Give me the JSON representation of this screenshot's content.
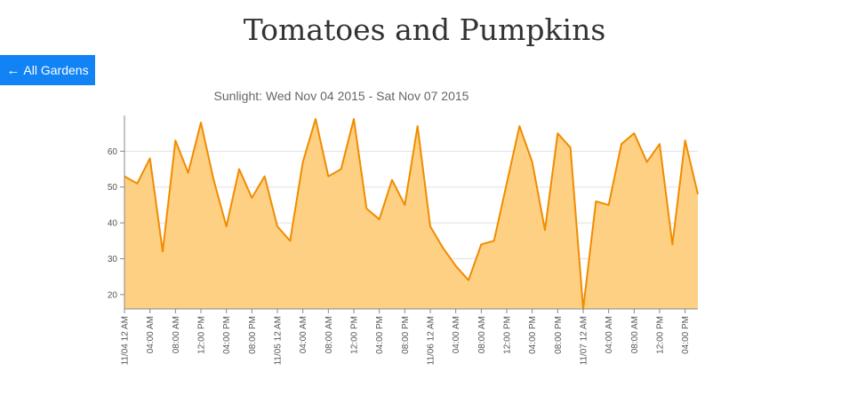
{
  "page": {
    "title": "Tomatoes and Pumpkins",
    "back_button_label": "All Gardens",
    "back_icon": "left-arrow-icon"
  },
  "colors": {
    "line": "#f08c00",
    "fill": "#fed083",
    "button": "#1283f4",
    "grid": "#e0e0e0"
  },
  "chart_data": {
    "type": "area",
    "title": "Sunlight: Wed Nov 04 2015 - Sat Nov 07 2015",
    "xlabel": "",
    "ylabel": "",
    "ylim": [
      16,
      70
    ],
    "yticks": [
      20,
      30,
      40,
      50,
      60
    ],
    "grid": "horizontal",
    "x_tick_labels": [
      "11/04 12 AM",
      "04:00 AM",
      "08:00 AM",
      "12:00 PM",
      "04:00 PM",
      "08:00 PM",
      "11/05 12 AM",
      "04:00 AM",
      "08:00 AM",
      "12:00 PM",
      "04:00 PM",
      "08:00 PM",
      "11/06 12 AM",
      "04:00 AM",
      "08:00 AM",
      "12:00 PM",
      "04:00 PM",
      "08:00 PM",
      "11/07 12 AM",
      "04:00 AM",
      "08:00 AM",
      "12:00 PM",
      "04:00 PM"
    ],
    "x_hours": [
      0,
      2,
      4,
      6,
      8,
      10,
      12,
      14,
      16,
      18,
      20,
      22,
      24,
      26,
      28,
      30,
      32,
      34,
      36,
      38,
      40,
      42,
      44,
      46,
      48,
      50,
      52,
      54,
      56,
      58,
      60,
      62,
      64,
      66,
      68,
      70,
      72,
      74,
      76,
      78,
      80,
      82,
      84,
      86,
      88,
      90
    ],
    "series": [
      {
        "values": [
          53,
          51,
          58,
          32,
          63,
          54,
          68,
          52,
          39,
          55,
          47,
          53,
          39,
          35,
          57,
          69,
          53,
          55,
          69,
          44,
          41,
          52,
          45,
          67,
          39,
          33,
          28,
          24,
          34,
          35,
          51,
          67,
          57,
          38,
          65,
          61,
          16,
          46,
          45,
          62,
          65,
          57,
          62,
          34,
          63,
          48
        ]
      }
    ]
  }
}
